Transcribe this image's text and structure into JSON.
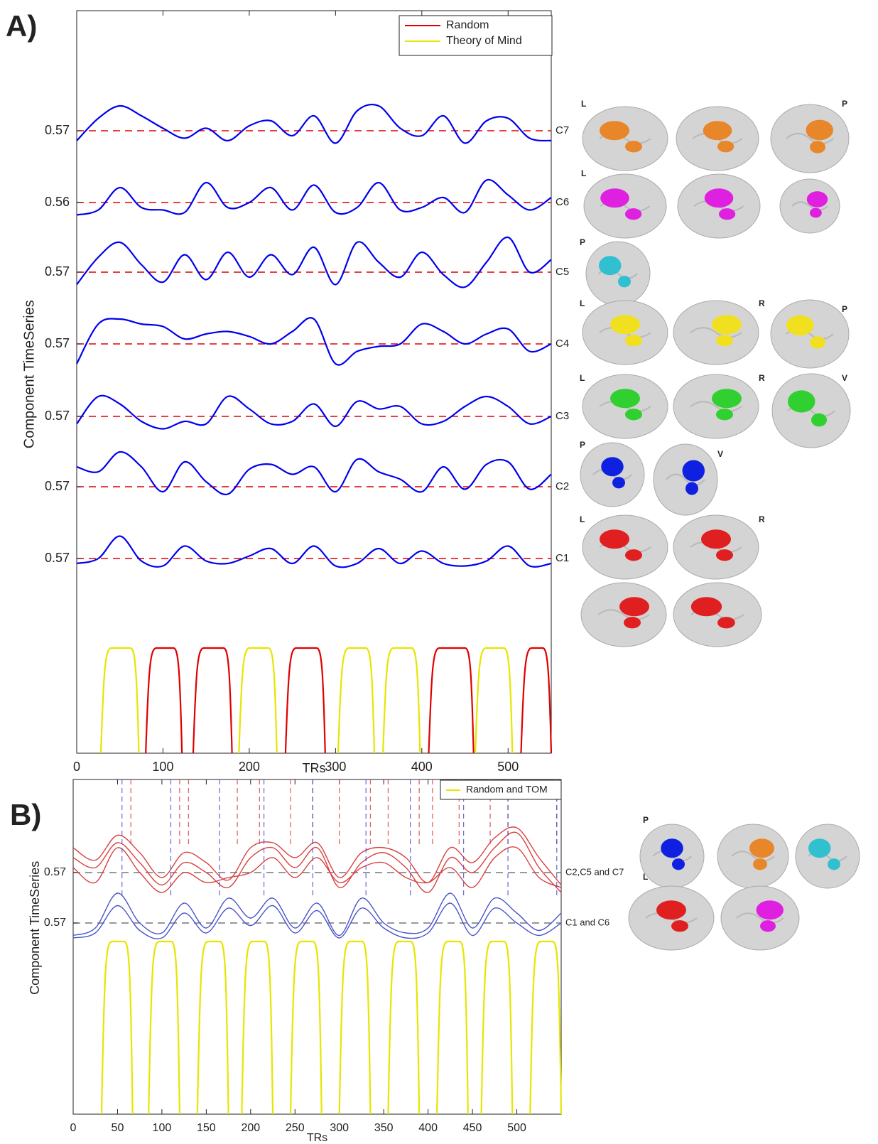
{
  "panel_labels": [
    "A)",
    "B)"
  ],
  "brain_letters": [
    [
      "L",
      "P"
    ],
    [
      "L"
    ],
    [
      "P"
    ],
    [
      "L",
      "R",
      "P"
    ],
    [
      "L",
      "R",
      "V"
    ],
    [
      "P",
      "V"
    ],
    [
      "L",
      "R"
    ],
    [
      "P",
      "L"
    ]
  ],
  "chart_data": [
    {
      "type": "line",
      "xlabel": "TRs",
      "ylabel": "Component TimeSeries",
      "xlim": [
        0,
        550
      ],
      "xticks": [
        0,
        100,
        200,
        300,
        400,
        500
      ],
      "x": [
        0,
        25,
        50,
        75,
        100,
        125,
        150,
        175,
        200,
        225,
        250,
        275,
        300,
        325,
        350,
        375,
        400,
        425,
        450,
        475,
        500,
        525,
        550
      ],
      "reference_color": "#e00000",
      "trace_color": "#0000ee",
      "components": [
        {
          "label": "C7",
          "baseline": 0.57,
          "values": [
            0.5696,
            0.5705,
            0.571,
            0.5706,
            0.5701,
            0.5697,
            0.5701,
            0.5696,
            0.5702,
            0.5704,
            0.5698,
            0.5706,
            0.5695,
            0.5708,
            0.571,
            0.5701,
            0.5698,
            0.5706,
            0.5695,
            0.5704,
            0.5705,
            0.5697,
            0.5696
          ]
        },
        {
          "label": "C6",
          "baseline": 0.56,
          "values": [
            0.5595,
            0.5597,
            0.5606,
            0.5598,
            0.5597,
            0.5596,
            0.5608,
            0.5598,
            0.56,
            0.5606,
            0.5597,
            0.5607,
            0.5596,
            0.5598,
            0.5608,
            0.5597,
            0.5598,
            0.5602,
            0.5596,
            0.5609,
            0.5603,
            0.5597,
            0.5602
          ]
        },
        {
          "label": "C5",
          "baseline": 0.57,
          "values": [
            0.5695,
            0.5706,
            0.5712,
            0.5703,
            0.5696,
            0.5707,
            0.5697,
            0.5708,
            0.5698,
            0.5707,
            0.5699,
            0.571,
            0.5695,
            0.5712,
            0.5704,
            0.5698,
            0.5708,
            0.5699,
            0.5694,
            0.5704,
            0.5714,
            0.57,
            0.5705
          ]
        },
        {
          "label": "C4",
          "baseline": 0.57,
          "values": [
            0.5692,
            0.5708,
            0.571,
            0.5708,
            0.5707,
            0.5702,
            0.5704,
            0.5705,
            0.5703,
            0.57,
            0.5705,
            0.571,
            0.5692,
            0.5697,
            0.5699,
            0.57,
            0.5708,
            0.5705,
            0.57,
            0.5704,
            0.5706,
            0.5697,
            0.57
          ]
        },
        {
          "label": "C3",
          "baseline": 0.57,
          "values": [
            0.5697,
            0.5708,
            0.5705,
            0.5698,
            0.5695,
            0.5698,
            0.5697,
            0.5708,
            0.5703,
            0.5697,
            0.5698,
            0.5705,
            0.5696,
            0.5706,
            0.5703,
            0.5704,
            0.5697,
            0.5698,
            0.5704,
            0.5708,
            0.5704,
            0.5697,
            0.57
          ]
        },
        {
          "label": "C2",
          "baseline": 0.57,
          "values": [
            0.5708,
            0.5706,
            0.5714,
            0.5708,
            0.5698,
            0.571,
            0.5702,
            0.5697,
            0.5707,
            0.5709,
            0.5705,
            0.5708,
            0.5698,
            0.5711,
            0.5706,
            0.5703,
            0.5698,
            0.5708,
            0.5699,
            0.5709,
            0.571,
            0.5699,
            0.5705
          ]
        },
        {
          "label": "C1",
          "baseline": 0.57,
          "values": [
            0.5698,
            0.57,
            0.5709,
            0.5699,
            0.5697,
            0.5705,
            0.5699,
            0.5698,
            0.5701,
            0.5704,
            0.5698,
            0.5705,
            0.5697,
            0.5698,
            0.5704,
            0.5698,
            0.5703,
            0.5698,
            0.5697,
            0.5699,
            0.5705,
            0.5697,
            0.5698
          ]
        }
      ],
      "legend": "upper right",
      "series": [
        {
          "name": "Random",
          "color": "#e00000",
          "spans": [
            [
              80,
              122
            ],
            [
              135,
              180
            ],
            [
              242,
              288
            ],
            [
              408,
              460
            ],
            [
              515,
              550
            ]
          ]
        },
        {
          "name": "Theory of Mind",
          "color": "#e6e600",
          "spans": [
            [
              28,
              72
            ],
            [
              188,
              232
            ],
            [
              303,
              345
            ],
            [
              355,
              398
            ],
            [
              462,
              505
            ]
          ]
        }
      ]
    },
    {
      "type": "line",
      "xlabel": "TRs",
      "ylabel": "Component TimeSeries",
      "xlim": [
        0,
        550
      ],
      "xticks": [
        0,
        50,
        100,
        150,
        200,
        250,
        300,
        350,
        400,
        450,
        500
      ],
      "x": [
        0,
        25,
        50,
        75,
        100,
        125,
        150,
        175,
        200,
        225,
        250,
        275,
        300,
        325,
        350,
        375,
        400,
        425,
        450,
        475,
        500,
        525,
        550
      ],
      "reference_color": "#777777",
      "groups": [
        {
          "label": "C2,C5 and C7",
          "baseline": 0.57,
          "color": "#d94040",
          "traces": [
            [
              0.571,
              0.5705,
              0.5715,
              0.5708,
              0.5698,
              0.5708,
              0.5704,
              0.5697,
              0.571,
              0.5712,
              0.5706,
              0.5712,
              0.5698,
              0.5708,
              0.571,
              0.5706,
              0.5696,
              0.571,
              0.5704,
              0.5714,
              0.5718,
              0.5706,
              0.5695
            ],
            [
              0.5706,
              0.5702,
              0.5712,
              0.5704,
              0.5695,
              0.5704,
              0.57,
              0.5694,
              0.5706,
              0.571,
              0.5702,
              0.571,
              0.5694,
              0.5704,
              0.5708,
              0.5702,
              0.5692,
              0.5706,
              0.57,
              0.571,
              0.5716,
              0.5702,
              0.5692
            ],
            [
              0.5702,
              0.5696,
              0.571,
              0.57,
              0.5692,
              0.57,
              0.5696,
              0.5698,
              0.57,
              0.5706,
              0.5698,
              0.5706,
              0.5696,
              0.5702,
              0.5704,
              0.5698,
              0.5696,
              0.5702,
              0.5694,
              0.5706,
              0.571,
              0.5698,
              0.5694
            ]
          ],
          "peak_lines": [
            65,
            120,
            130,
            185,
            210,
            245,
            270,
            300,
            335,
            355,
            390,
            405,
            435,
            470,
            490,
            545
          ]
        },
        {
          "label": "C1 and C6",
          "baseline": 0.57,
          "color": "#4a55c8",
          "traces": [
            [
              0.5695,
              0.5698,
              0.5712,
              0.57,
              0.5696,
              0.5708,
              0.5698,
              0.571,
              0.5702,
              0.571,
              0.5698,
              0.5708,
              0.5695,
              0.571,
              0.57,
              0.5696,
              0.5698,
              0.5712,
              0.5698,
              0.571,
              0.5704,
              0.5697,
              0.5704
            ],
            [
              0.5694,
              0.5696,
              0.5707,
              0.5697,
              0.5694,
              0.5704,
              0.5696,
              0.5706,
              0.5699,
              0.5707,
              0.5696,
              0.5705,
              0.5694,
              0.5706,
              0.5698,
              0.5694,
              0.5696,
              0.5708,
              0.5695,
              0.5706,
              0.57,
              0.5695,
              0.57
            ]
          ],
          "peak_lines": [
            55,
            110,
            165,
            215,
            270,
            330,
            380,
            440,
            490,
            545
          ]
        }
      ],
      "legend": "upper right",
      "series": [
        {
          "name": "Random and TOM",
          "color": "#e6e600",
          "spans": [
            [
              32,
              67
            ],
            [
              85,
              120
            ],
            [
              140,
              175
            ],
            [
              190,
              225
            ],
            [
              245,
              280
            ],
            [
              300,
              335
            ],
            [
              355,
              390
            ],
            [
              410,
              445
            ],
            [
              460,
              495
            ],
            [
              515,
              550
            ]
          ]
        }
      ]
    }
  ]
}
